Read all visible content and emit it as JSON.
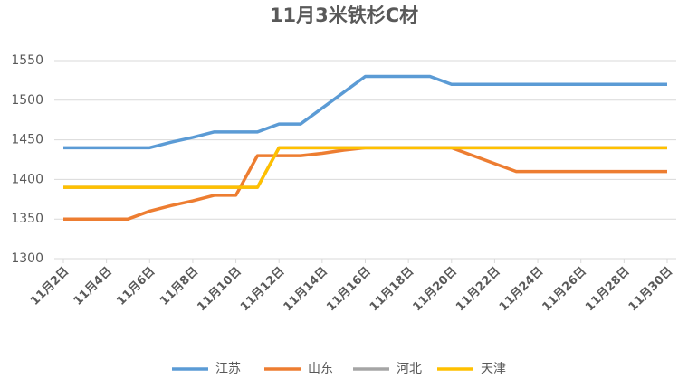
{
  "chart_data": {
    "type": "line",
    "title": "11月3米铁杉C材",
    "categories": [
      "11月2日",
      null,
      "11月4日",
      null,
      "11月6日",
      null,
      "11月8日",
      null,
      "11月10日",
      null,
      "11月12日",
      null,
      "11月14日",
      null,
      "11月16日",
      null,
      "11月18日",
      null,
      "11月20日",
      null,
      "11月22日",
      null,
      "11月24日",
      null,
      "11月26日",
      null,
      "11月28日",
      null,
      "11月30日"
    ],
    "series": [
      {
        "name": "江苏",
        "color": "#5b9bd5",
        "values": [
          1440,
          1440,
          1440,
          1440,
          1440,
          1447,
          1453,
          1460,
          1460,
          1460,
          1470,
          1470,
          1490,
          1510,
          1530,
          1530,
          1530,
          1530,
          1520,
          1520,
          1520,
          1520,
          1520,
          1520,
          1520,
          1520,
          1520,
          1520,
          1520
        ]
      },
      {
        "name": "山东",
        "color": "#ed7d31",
        "values": [
          1350,
          1350,
          1350,
          1350,
          1360,
          1367,
          1373,
          1380,
          1380,
          1430,
          1430,
          1430,
          1433,
          1437,
          1440,
          1440,
          1440,
          1440,
          1440,
          1430,
          1420,
          1410,
          1410,
          1410,
          1410,
          1410,
          1410,
          1410,
          1410
        ]
      },
      {
        "name": "河北",
        "color": "#a5a5a5",
        "values": [
          1390,
          1390,
          1390,
          1390,
          1390,
          1390,
          1390,
          1390,
          1390,
          1390,
          1440,
          1440,
          1440,
          1440,
          1440,
          1440,
          1440,
          1440,
          1440,
          1440,
          1440,
          1440,
          1440,
          1440,
          1440,
          1440,
          1440,
          1440,
          1440
        ]
      },
      {
        "name": "天津",
        "color": "#ffc000",
        "values": [
          1390,
          1390,
          1390,
          1390,
          1390,
          1390,
          1390,
          1390,
          1390,
          1390,
          1440,
          1440,
          1440,
          1440,
          1440,
          1440,
          1440,
          1440,
          1440,
          1440,
          1440,
          1440,
          1440,
          1440,
          1440,
          1440,
          1440,
          1440,
          1440
        ]
      }
    ],
    "ylim": [
      1300,
      1550
    ],
    "yticks": [
      1300,
      1350,
      1400,
      1450,
      1500,
      1550
    ],
    "grid": true,
    "legend": "bottom"
  }
}
